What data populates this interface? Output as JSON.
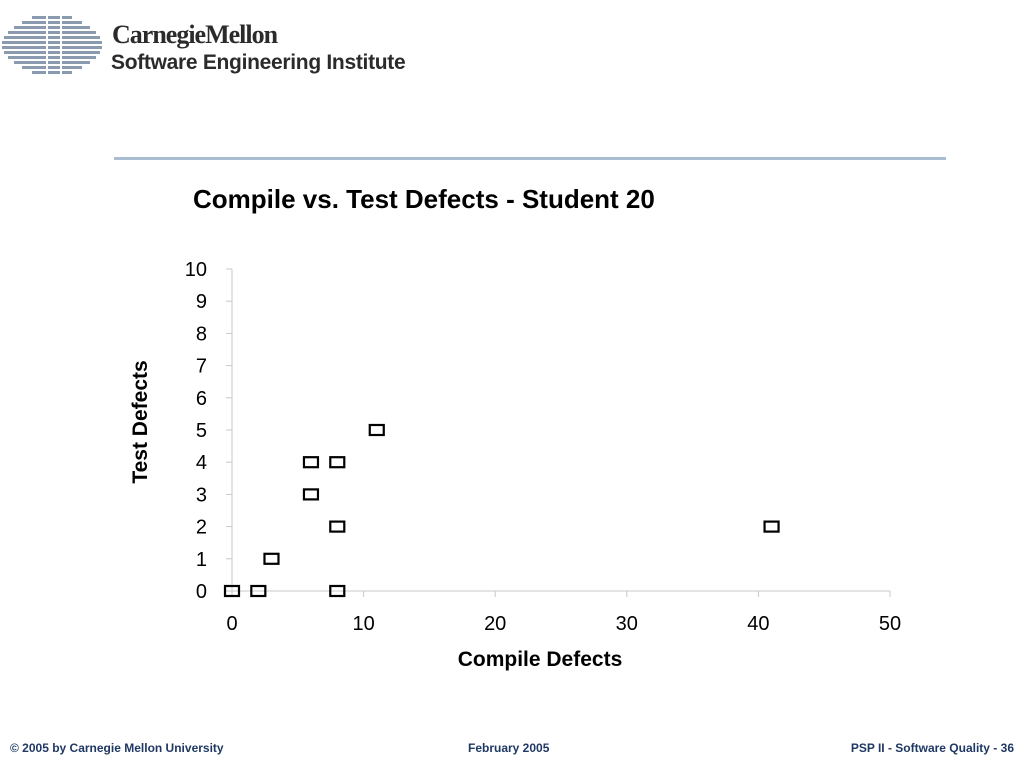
{
  "header": {
    "org_name": "CarnegieMellon",
    "institute_name": "Software Engineering Institute",
    "logo_icon": "striped-globe-logo",
    "rule_color": "#a9bcd0"
  },
  "chart_data": {
    "type": "scatter",
    "title": "Compile vs. Test Defects - Student 20",
    "xlabel": "Compile Defects",
    "ylabel": "Test Defects",
    "xlim": [
      0,
      50
    ],
    "ylim": [
      0,
      10
    ],
    "xticks": [
      0,
      10,
      20,
      30,
      40,
      50
    ],
    "yticks": [
      0,
      1,
      2,
      3,
      4,
      5,
      6,
      7,
      8,
      9,
      10
    ],
    "grid": false,
    "marker": "open-square",
    "series": [
      {
        "points": [
          {
            "x": 0,
            "y": 0
          },
          {
            "x": 2,
            "y": 0
          },
          {
            "x": 8,
            "y": 0
          },
          {
            "x": 3,
            "y": 1
          },
          {
            "x": 8,
            "y": 2
          },
          {
            "x": 41,
            "y": 2
          },
          {
            "x": 6,
            "y": 3
          },
          {
            "x": 6,
            "y": 4
          },
          {
            "x": 8,
            "y": 4
          },
          {
            "x": 11,
            "y": 5
          }
        ]
      }
    ]
  },
  "footer": {
    "copyright": "© 2005 by Carnegie Mellon University",
    "date": "February 2005",
    "course": "PSP II - Software Quality - 36"
  }
}
